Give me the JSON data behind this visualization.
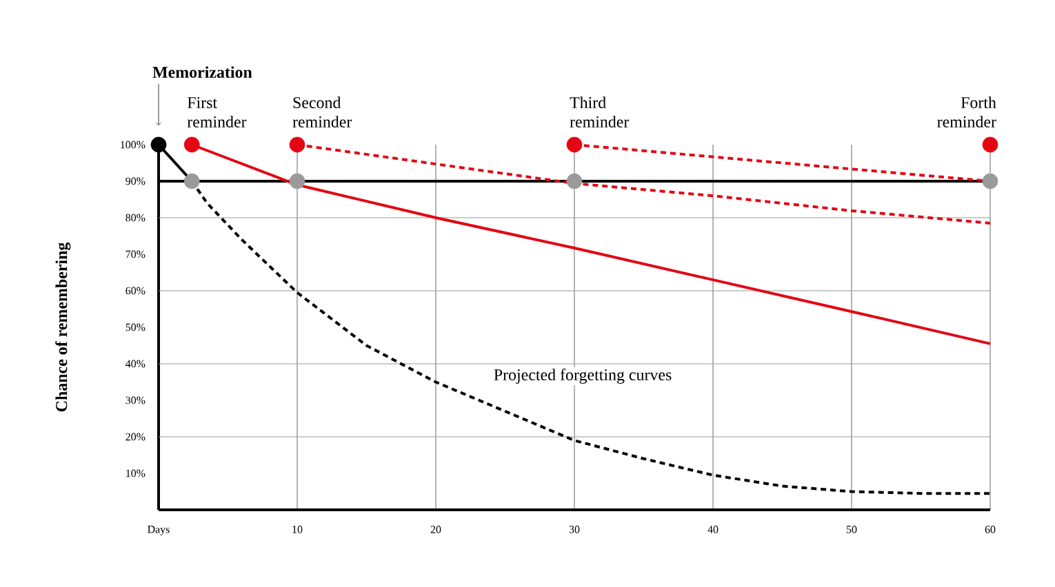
{
  "chart_data": {
    "type": "line",
    "ylabel": "Chance of remembering",
    "xlim": [
      0,
      60
    ],
    "ylim": [
      0,
      100
    ],
    "xticks": [
      {
        "value": 0,
        "label": "Days"
      },
      10,
      20,
      30,
      40,
      50,
      60
    ],
    "yticks": [
      {
        "value": 10,
        "label": "10%"
      },
      {
        "value": 20,
        "label": "20%"
      },
      {
        "value": 30,
        "label": "30%"
      },
      {
        "value": 40,
        "label": "40%"
      },
      {
        "value": 50,
        "label": "50%"
      },
      {
        "value": 60,
        "label": "60%"
      },
      {
        "value": 70,
        "label": "70%"
      },
      {
        "value": 80,
        "label": "80%"
      },
      {
        "value": 90,
        "label": "90%"
      },
      {
        "value": 100,
        "label": "100%"
      }
    ],
    "grid": "x",
    "ref_lines": [
      {
        "axis": "y",
        "value": 20,
        "label": null,
        "color": "#9a9a9a"
      },
      {
        "axis": "y",
        "value": 40,
        "label": null,
        "color": "#9a9a9a"
      },
      {
        "axis": "y",
        "value": 60,
        "label": null,
        "color": "#9a9a9a"
      },
      {
        "axis": "y",
        "value": 80,
        "label": null,
        "color": "#9a9a9a"
      },
      {
        "axis": "y",
        "value": 90,
        "label": null,
        "color": "#000000"
      }
    ],
    "series": [
      {
        "color": "#000000",
        "line_style": "solid",
        "marker": "none",
        "x": [
          0,
          2.4
        ],
        "values": [
          100,
          90
        ]
      },
      {
        "color": "#000000",
        "line_style": "dashed",
        "marker": "none",
        "x": [
          2.4,
          3.5,
          6,
          10,
          15,
          20,
          25,
          30,
          35,
          40,
          45,
          50,
          55,
          60
        ],
        "values": [
          90,
          84,
          74,
          59.5,
          45,
          35,
          27,
          19,
          14,
          9.5,
          6.5,
          5,
          4.5,
          4.5
        ]
      },
      {
        "color": "#e30613",
        "line_style": "solid",
        "marker": "none",
        "x": [
          2.4,
          10,
          20,
          30,
          40,
          50,
          60
        ],
        "values": [
          100,
          89,
          80,
          71.7,
          63,
          54.3,
          45.5
        ]
      },
      {
        "color": "#e30613",
        "line_style": "dashed",
        "marker": "none",
        "x": [
          10,
          30,
          40,
          50,
          60
        ],
        "values": [
          100,
          89.4,
          86,
          81.9,
          78.5
        ]
      },
      {
        "color": "#e30613",
        "line_style": "dashed",
        "marker": "none",
        "x": [
          30,
          60
        ],
        "values": [
          100,
          90
        ]
      },
      {
        "type": "scatter",
        "color": "#9a9a9a",
        "marker": "circle",
        "x": [
          2.4,
          10,
          30,
          60
        ],
        "values": [
          90,
          90,
          90,
          90
        ]
      },
      {
        "type": "scatter",
        "color": "#000000",
        "marker": "circle",
        "x": [
          0
        ],
        "values": [
          100
        ]
      },
      {
        "type": "scatter",
        "color": "#e30613",
        "marker": "circle",
        "x": [
          2.4,
          10,
          30,
          60
        ],
        "values": [
          100,
          100,
          100,
          100
        ]
      }
    ],
    "annotations": [
      "Memorization",
      {
        "text": "First reminder",
        "x": 2.4,
        "y": 100
      },
      {
        "text": "Second reminder",
        "x": 10,
        "y": 100
      },
      {
        "text": "Third reminder",
        "x": 30,
        "y": 100
      },
      {
        "text": "Forth reminder",
        "x": 60,
        "y": 100
      },
      "Projected forgetting curves"
    ]
  }
}
